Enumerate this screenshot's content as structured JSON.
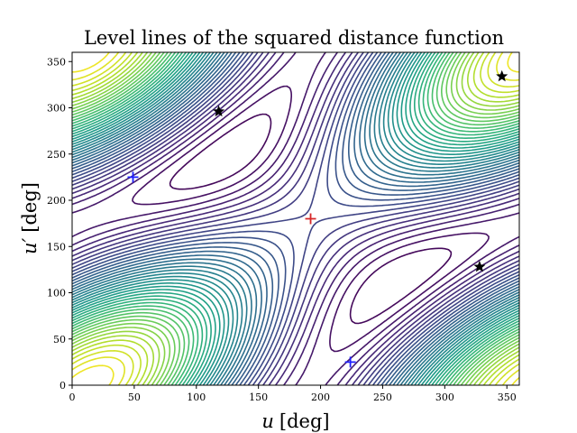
{
  "chart_data": {
    "type": "contour",
    "title": "Level lines of the squared distance function",
    "xlabel_var": "u",
    "xlabel_unit": "[deg]",
    "ylabel_var": "u′",
    "ylabel_unit": "[deg]",
    "xlim": [
      0,
      360
    ],
    "ylim": [
      0,
      360
    ],
    "xticks": [
      0,
      50,
      100,
      150,
      200,
      250,
      300,
      350
    ],
    "yticks": [
      0,
      50,
      100,
      150,
      200,
      250,
      300,
      350
    ],
    "grid": false,
    "colormap": "viridis",
    "maximum_marker": {
      "symbol": "plus",
      "color": "#d62728",
      "x": 192,
      "y": 180
    },
    "plus_markers": {
      "symbol": "plus",
      "color": "#1f1fff",
      "points": [
        {
          "x": 49,
          "y": 225
        },
        {
          "x": 224,
          "y": 25
        }
      ]
    },
    "star_markers": {
      "symbol": "star",
      "color": "#000000",
      "points": [
        {
          "x": 118,
          "y": 296
        },
        {
          "x": 346,
          "y": 334
        },
        {
          "x": 328,
          "y": 128
        }
      ]
    }
  }
}
